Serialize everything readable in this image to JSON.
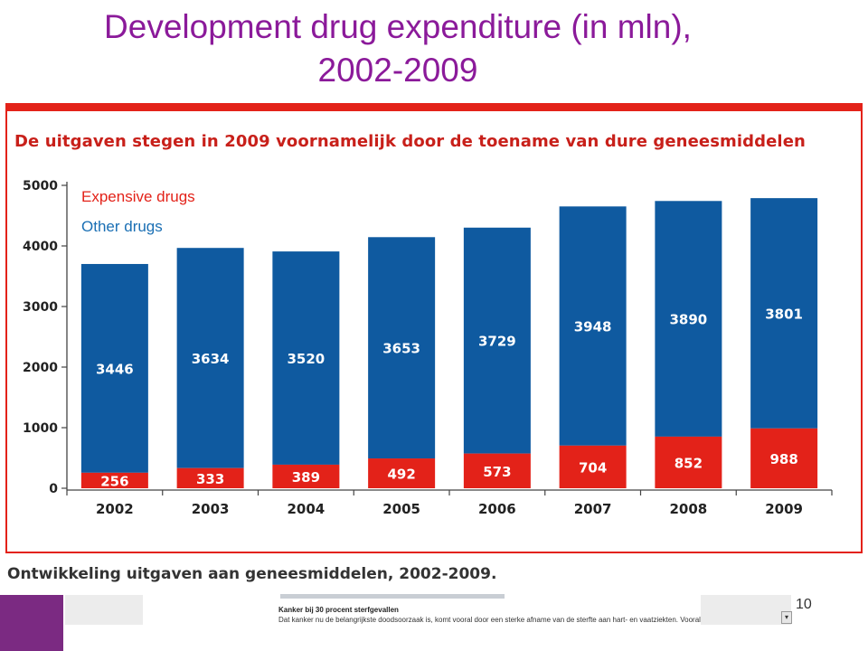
{
  "slide": {
    "title_line1": "Development drug expenditure (in mln),",
    "title_line2": "2002-2009",
    "page_number": "10"
  },
  "panel": {
    "heading": "De uitgaven stegen in 2009 voornamelijk door de toename van dure geneesmiddelen"
  },
  "caption": "Ontwikkeling uitgaven aan geneesmiddelen, 2002-2009.",
  "clipping": {
    "headline": "Kanker bij 30 procent sterfgevallen",
    "text": "Dat kanker nu de belangrijkste doodsoorzaak is, komt vooral door een sterke afname van de sterfte aan hart- en vaatziekten. Vooral sinds medio"
  },
  "colors": {
    "title": "#8b1a9a",
    "expensive": "#e32219",
    "other": "#0f5aa0",
    "accent": "#7b2a82"
  },
  "chart_data": {
    "type": "bar",
    "stacked": true,
    "categories": [
      "2002",
      "2003",
      "2004",
      "2005",
      "2006",
      "2007",
      "2008",
      "2009"
    ],
    "series": [
      {
        "name": "Expensive drugs",
        "color": "#e32219",
        "values": [
          256,
          333,
          389,
          492,
          573,
          704,
          852,
          988
        ]
      },
      {
        "name": "Other drugs",
        "color": "#0f5aa0",
        "values": [
          3446,
          3634,
          3520,
          3653,
          3729,
          3948,
          3890,
          3801
        ]
      }
    ],
    "yticks": [
      "0",
      "1000",
      "2000",
      "3000",
      "4000",
      "5000"
    ],
    "ylim": [
      0,
      5000
    ],
    "grid": false,
    "legend_position": "top-left"
  }
}
